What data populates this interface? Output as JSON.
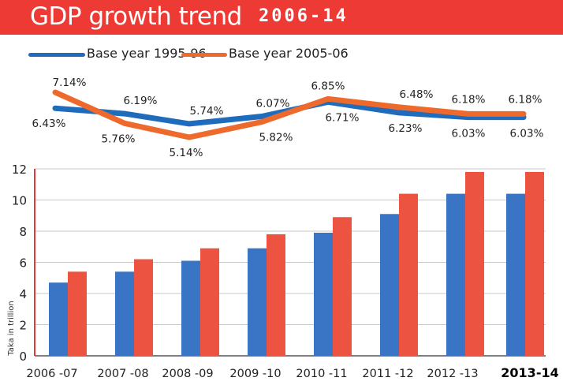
{
  "header": {
    "title": "GDP growth trend",
    "subtitle": "2006-14"
  },
  "colors": {
    "header_bg": "#ed3a35",
    "series_1995": "#1f6cbd",
    "series_2005": "#ee6a2c",
    "bar_1995": "#3a74c4",
    "bar_2005": "#ec5340"
  },
  "chart_data": [
    {
      "type": "line",
      "title": "GDP growth trend",
      "categories": [
        "2006 -07",
        "2007 -08",
        "2008 -09",
        "2009 -10",
        "2010 -11",
        "2011 -12",
        "2012 -13",
        "2013-14"
      ],
      "series": [
        {
          "name": "Base year 1995-96",
          "values": [
            6.43,
            6.19,
            5.74,
            6.07,
            6.71,
            6.23,
            6.03,
            6.03
          ],
          "labels": [
            "6.43%",
            "6.19%",
            "5.74%",
            "6.07%",
            "6.71%",
            "6.23%",
            "6.03%",
            "6.03%"
          ]
        },
        {
          "name": "Base year 2005-06",
          "values": [
            7.14,
            5.76,
            5.14,
            5.82,
            6.85,
            6.48,
            6.18,
            6.18
          ],
          "labels": [
            "7.14%",
            "5.76%",
            "5.14%",
            "5.82%",
            "6.85%",
            "6.48%",
            "6.18%",
            "6.18%"
          ]
        }
      ],
      "legend": [
        "Base year 1995-96",
        "Base year 2005-06"
      ]
    },
    {
      "type": "bar",
      "categories": [
        "2006 -07",
        "2007 -08",
        "2008 -09",
        "2009 -10",
        "2010 -11",
        "2011 -12",
        "2012 -13",
        "2013-14"
      ],
      "series": [
        {
          "name": "Base year 1995-96",
          "values": [
            4.7,
            5.4,
            6.1,
            6.9,
            7.9,
            9.1,
            10.4,
            10.4
          ]
        },
        {
          "name": "Base year 2005-06",
          "values": [
            5.4,
            6.2,
            6.9,
            7.8,
            8.9,
            10.4,
            11.8,
            11.8
          ]
        }
      ],
      "ylabel": "Taka in trillion",
      "ylim": [
        0,
        12
      ],
      "yticks": [
        "0",
        "2",
        "4",
        "6",
        "8",
        "10",
        "12"
      ],
      "grid": true
    }
  ]
}
